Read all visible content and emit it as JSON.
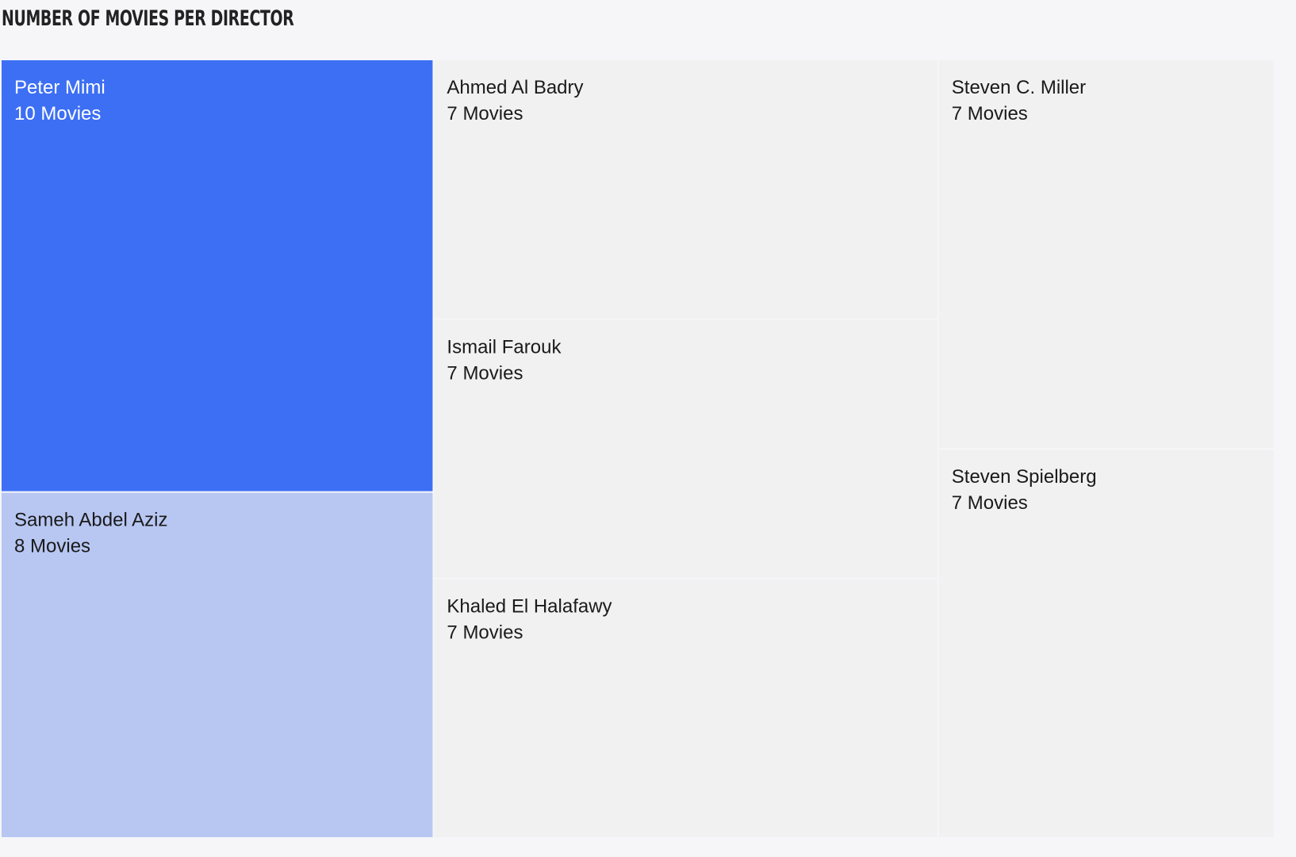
{
  "title": "NUMBER OF MOVIES PER DIRECTOR",
  "colors": {
    "top": "#3d6ff4",
    "second": "#b8c7f2",
    "rest": "#f1f1f1",
    "text_dark": "#1a1a1a",
    "text_light": "#ffffff",
    "background": "#f6f6f9"
  },
  "chart_data": {
    "type": "treemap",
    "measure_unit": "Movies",
    "items": [
      {
        "name": "Peter Mimi",
        "value": 10,
        "label": "10 Movies"
      },
      {
        "name": "Sameh Abdel Aziz",
        "value": 8,
        "label": "8 Movies"
      },
      {
        "name": "Ahmed Al Badry",
        "value": 7,
        "label": "7 Movies"
      },
      {
        "name": "Ismail Farouk",
        "value": 7,
        "label": "7 Movies"
      },
      {
        "name": "Khaled El Halafawy",
        "value": 7,
        "label": "7 Movies"
      },
      {
        "name": "Steven C. Miller",
        "value": 7,
        "label": "7 Movies"
      },
      {
        "name": "Steven Spielberg",
        "value": 7,
        "label": "7 Movies"
      }
    ]
  }
}
